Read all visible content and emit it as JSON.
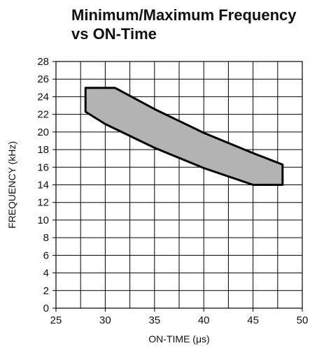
{
  "chart_data": {
    "type": "area",
    "title": "Minimum/Maximum Frequency\nvs ON-Time",
    "xlabel": "ON-TIME (μs)",
    "ylabel": "FREQUENCY (kHz)",
    "xlim": [
      25,
      50
    ],
    "ylim": [
      0,
      28
    ],
    "x_ticks": [
      25,
      30,
      35,
      40,
      45,
      50
    ],
    "y_ticks": [
      0,
      2,
      4,
      6,
      8,
      10,
      12,
      14,
      16,
      18,
      20,
      22,
      24,
      26,
      28
    ],
    "x_grid_step": 2.5,
    "y_grid_step": 2,
    "grid": true,
    "fill_color": "#b3b3b3",
    "series": [
      {
        "boundary": "upper",
        "points": [
          [
            28,
            25
          ],
          [
            31,
            25
          ],
          [
            35,
            22.6
          ],
          [
            40,
            19.9
          ],
          [
            45,
            17.6
          ],
          [
            48,
            16.3
          ]
        ]
      },
      {
        "boundary": "lower",
        "points": [
          [
            28,
            22.3
          ],
          [
            30,
            20.9
          ],
          [
            35,
            18.2
          ],
          [
            40,
            15.9
          ],
          [
            45,
            14
          ],
          [
            48,
            14
          ]
        ]
      }
    ]
  }
}
